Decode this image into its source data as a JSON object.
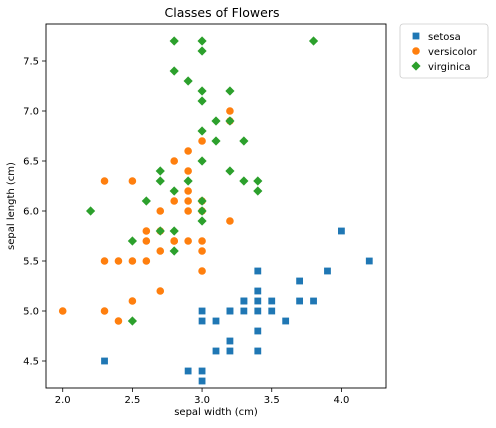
{
  "chart_data": {
    "type": "scatter",
    "title": "Classes of Flowers",
    "xlabel": "sepal width (cm)",
    "ylabel": "sepal length (cm)",
    "xlim": [
      1.88,
      4.32
    ],
    "ylim": [
      4.23,
      7.87
    ],
    "xticks": [
      2.0,
      2.5,
      3.0,
      3.5,
      4.0
    ],
    "yticks": [
      4.5,
      5.0,
      5.5,
      6.0,
      6.5,
      7.0,
      7.5
    ],
    "xtick_labels": [
      "2.0",
      "2.5",
      "3.0",
      "3.5",
      "4.0"
    ],
    "ytick_labels": [
      "4.5",
      "5.0",
      "5.5",
      "6.0",
      "6.5",
      "7.0",
      "7.5"
    ],
    "grid": false,
    "legend_position": "outside-top-right",
    "series": [
      {
        "name": "setosa",
        "color": "#1f77b4",
        "marker": "square",
        "points": [
          [
            2.3,
            4.5
          ],
          [
            2.9,
            4.4
          ],
          [
            3.0,
            4.4
          ],
          [
            3.0,
            4.3
          ],
          [
            3.0,
            5.0
          ],
          [
            3.0,
            4.9
          ],
          [
            3.1,
            4.9
          ],
          [
            3.1,
            4.6
          ],
          [
            3.2,
            5.0
          ],
          [
            3.2,
            4.7
          ],
          [
            3.2,
            4.6
          ],
          [
            3.3,
            5.1
          ],
          [
            3.3,
            5.0
          ],
          [
            3.4,
            5.4
          ],
          [
            3.4,
            5.2
          ],
          [
            3.4,
            5.1
          ],
          [
            3.4,
            5.0
          ],
          [
            3.4,
            4.8
          ],
          [
            3.4,
            4.6
          ],
          [
            3.5,
            5.1
          ],
          [
            3.5,
            5.0
          ],
          [
            3.6,
            4.9
          ],
          [
            3.7,
            5.3
          ],
          [
            3.7,
            5.1
          ],
          [
            3.8,
            5.1
          ],
          [
            3.9,
            5.4
          ],
          [
            4.0,
            5.8
          ],
          [
            4.2,
            5.5
          ],
          [
            3.2,
            5.0
          ],
          [
            3.3,
            5.1
          ]
        ]
      },
      {
        "name": "versicolor",
        "color": "#ff7f0e",
        "marker": "circle",
        "points": [
          [
            2.0,
            5.0
          ],
          [
            2.3,
            6.3
          ],
          [
            2.3,
            5.5
          ],
          [
            2.3,
            5.0
          ],
          [
            2.4,
            5.5
          ],
          [
            2.4,
            4.9
          ],
          [
            2.5,
            6.3
          ],
          [
            2.5,
            5.5
          ],
          [
            2.5,
            5.1
          ],
          [
            2.6,
            5.8
          ],
          [
            2.6,
            5.7
          ],
          [
            2.6,
            5.5
          ],
          [
            2.7,
            6.0
          ],
          [
            2.7,
            5.8
          ],
          [
            2.7,
            5.6
          ],
          [
            2.7,
            5.2
          ],
          [
            2.8,
            6.5
          ],
          [
            2.8,
            6.1
          ],
          [
            2.8,
            5.7
          ],
          [
            2.9,
            6.6
          ],
          [
            2.9,
            6.4
          ],
          [
            2.9,
            6.2
          ],
          [
            2.9,
            6.1
          ],
          [
            2.9,
            5.7
          ],
          [
            3.0,
            6.7
          ],
          [
            3.0,
            6.1
          ],
          [
            3.0,
            6.0
          ],
          [
            3.0,
            5.7
          ],
          [
            3.0,
            5.6
          ],
          [
            3.0,
            5.4
          ],
          [
            3.2,
            7.0
          ],
          [
            3.2,
            6.9
          ],
          [
            3.2,
            5.9
          ],
          [
            2.8,
            5.7
          ],
          [
            2.9,
            6.0
          ]
        ]
      },
      {
        "name": "virginica",
        "color": "#2ca02c",
        "marker": "diamond",
        "points": [
          [
            2.2,
            6.0
          ],
          [
            2.5,
            5.7
          ],
          [
            2.5,
            4.9
          ],
          [
            2.6,
            6.1
          ],
          [
            2.7,
            6.4
          ],
          [
            2.7,
            6.3
          ],
          [
            2.7,
            5.8
          ],
          [
            2.8,
            7.7
          ],
          [
            2.8,
            7.4
          ],
          [
            2.8,
            6.2
          ],
          [
            2.8,
            5.8
          ],
          [
            2.8,
            5.6
          ],
          [
            2.9,
            7.3
          ],
          [
            2.9,
            6.3
          ],
          [
            3.0,
            7.7
          ],
          [
            3.0,
            7.6
          ],
          [
            3.0,
            7.2
          ],
          [
            3.0,
            7.1
          ],
          [
            3.0,
            6.8
          ],
          [
            3.0,
            6.5
          ],
          [
            3.0,
            6.1
          ],
          [
            3.0,
            5.9
          ],
          [
            3.1,
            6.9
          ],
          [
            3.1,
            6.7
          ],
          [
            3.2,
            7.2
          ],
          [
            3.2,
            6.9
          ],
          [
            3.2,
            6.4
          ],
          [
            3.3,
            6.7
          ],
          [
            3.3,
            6.3
          ],
          [
            3.4,
            6.3
          ],
          [
            3.4,
            6.2
          ],
          [
            3.8,
            7.7
          ],
          [
            3.0,
            6.0
          ]
        ]
      }
    ]
  }
}
